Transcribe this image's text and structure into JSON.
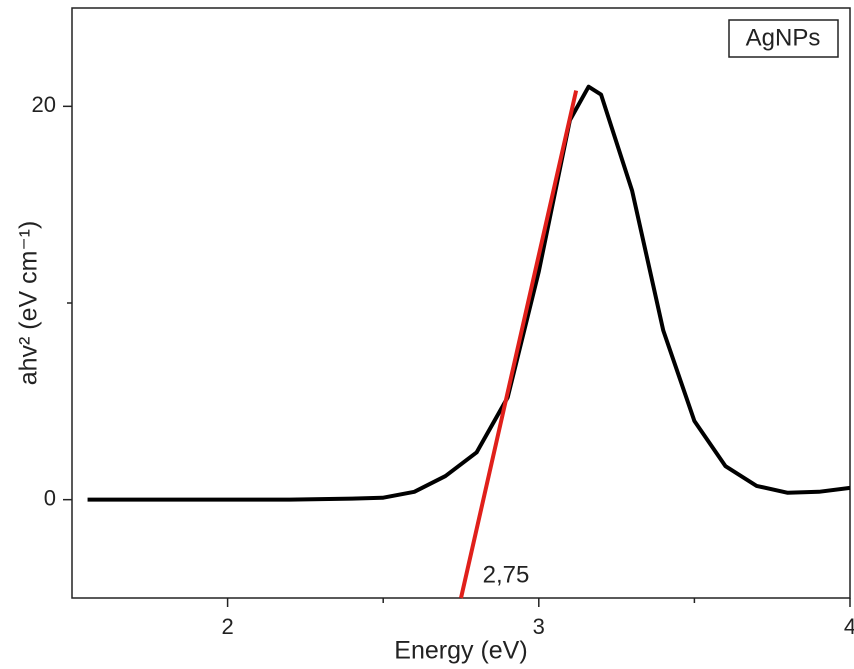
{
  "chart_data": {
    "type": "line",
    "x_label": "Energy (eV)",
    "y_label": "ahv² (eV cm⁻¹)",
    "xlim": [
      1.5,
      4
    ],
    "xticks": [
      2,
      3,
      4
    ],
    "xminorticks": [
      2.5,
      3.5
    ],
    "ylim": [
      -5,
      25
    ],
    "yticks": [
      0,
      20
    ],
    "yminorticks": [
      10
    ],
    "series": [
      {
        "name": "AgNPs",
        "color": "#000000",
        "x": [
          1.55,
          1.8,
          2.0,
          2.2,
          2.4,
          2.5,
          2.6,
          2.7,
          2.8,
          2.9,
          3.0,
          3.1,
          3.16,
          3.2,
          3.3,
          3.4,
          3.5,
          3.6,
          3.7,
          3.8,
          3.9,
          4.0
        ],
        "values": [
          0,
          0,
          0,
          0,
          0.05,
          0.1,
          0.4,
          1.2,
          2.4,
          5.2,
          11.6,
          19.3,
          21.0,
          20.6,
          15.7,
          8.6,
          4.0,
          1.7,
          0.7,
          0.35,
          0.4,
          0.6
        ]
      }
    ],
    "fit_line": {
      "color": "#e0201b",
      "x": [
        2.75,
        3.12
      ],
      "values": [
        -5,
        20.8
      ]
    },
    "annotation": "2,75",
    "legend": "top-right"
  }
}
